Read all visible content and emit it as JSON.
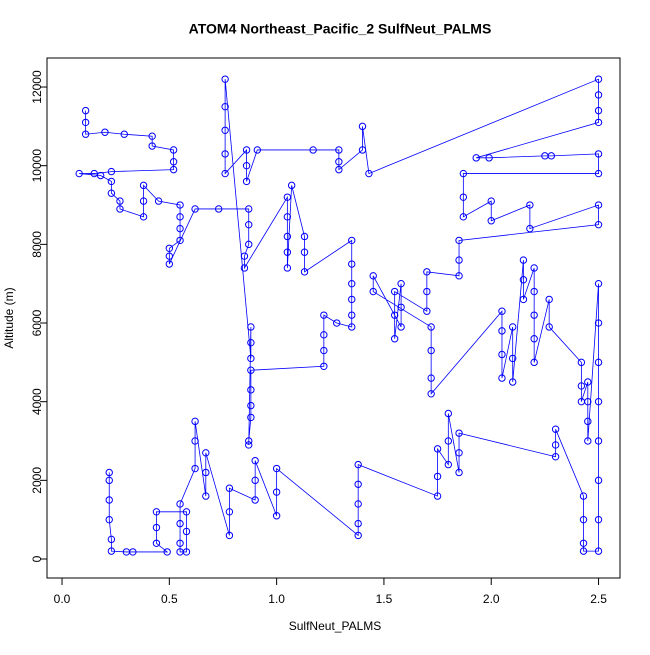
{
  "chart_data": {
    "type": "scatter-line",
    "title": "ATOM4 Northeast_Pacific_2 SulfNeut_PALMS",
    "x_label": "SulfNeut_PALMS",
    "y_label": "Altitude (m)",
    "color": "#0000ff",
    "xlim": [
      -0.07,
      2.6
    ],
    "ylim": [
      -483,
      12738
    ],
    "xticks": [
      {
        "value": 0,
        "label": "0.0"
      },
      0.5,
      {
        "value": 1,
        "label": "1.0"
      },
      1.5,
      {
        "value": 2,
        "label": "2.0"
      },
      2.5
    ],
    "yticks": [
      0,
      2000,
      4000,
      6000,
      8000,
      10000,
      12000
    ],
    "x": [
      0.11,
      0.11,
      0.11,
      0.2,
      0.29,
      0.42,
      0.42,
      0.52,
      0.52,
      0.52,
      0.23,
      0.15,
      0.08,
      0.18,
      0.23,
      0.23,
      0.27,
      0.27,
      0.38,
      0.38,
      0.38,
      0.45,
      0.55,
      0.55,
      0.55,
      0.55,
      0.5,
      0.5,
      0.5,
      0.62,
      0.73,
      0.87,
      0.87,
      0.87,
      0.85,
      0.85,
      1.05,
      1.05,
      1.05,
      1.05,
      1.05,
      1.07,
      1.13,
      1.13,
      1.13,
      1.35,
      1.35,
      1.35,
      1.35,
      1.35,
      1.35,
      1.28,
      1.22,
      1.22,
      1.22,
      1.22,
      0.88,
      0.88,
      0.88,
      0.88,
      0.87,
      0.87,
      0.88,
      0.88,
      0.88,
      0.76,
      0.76,
      0.76,
      0.76,
      0.76,
      0.86,
      0.86,
      0.86,
      0.91,
      1.17,
      1.29,
      1.29,
      1.29,
      1.4,
      1.4,
      1.43,
      2.5,
      2.5,
      2.5,
      2.5,
      1.93,
      1.99,
      2.25,
      2.28,
      2.5,
      2.5,
      1.87,
      1.87,
      1.87,
      2.0,
      2.0,
      2.18,
      2.18,
      2.5,
      2.5,
      1.85,
      1.85,
      1.85,
      1.7,
      1.7,
      1.7,
      1.55,
      1.55,
      1.55,
      1.58,
      1.58,
      1.58,
      1.45,
      1.45,
      1.72,
      1.72,
      1.72,
      1.72,
      2.05,
      2.05,
      2.05,
      2.05,
      2.1,
      2.1,
      2.1,
      2.15,
      2.15,
      2.15,
      2.2,
      2.2,
      2.2,
      2.2,
      2.2,
      2.27,
      2.27,
      2.42,
      2.42,
      2.42,
      2.45,
      2.45,
      2.45,
      2.45,
      2.5,
      2.5,
      2.5,
      2.5,
      2.5,
      2.5,
      2.5,
      2.5,
      2.43,
      2.43,
      2.43,
      2.43,
      2.3,
      2.3,
      2.3,
      1.85,
      1.85,
      1.85,
      1.8,
      1.8,
      1.8,
      1.75,
      1.75,
      1.75,
      1.38,
      1.38,
      1.38,
      1.38,
      1.38,
      1.0,
      1.0,
      1.0,
      0.9,
      0.9,
      0.9,
      0.78,
      0.78,
      0.78,
      0.67,
      0.67,
      0.67,
      0.62,
      0.62,
      0.62,
      0.55,
      0.55,
      0.55,
      0.55,
      0.58,
      0.58,
      0.58,
      0.44,
      0.44,
      0.44,
      0.49,
      0.33,
      0.3,
      0.23,
      0.23,
      0.22,
      0.22,
      0.22,
      0.22
    ],
    "values": [
      11400,
      11100,
      10800,
      10850,
      10800,
      10750,
      10500,
      10400,
      10100,
      9900,
      9850,
      9800,
      9800,
      9750,
      9600,
      9300,
      9100,
      8900,
      8700,
      9100,
      9500,
      9100,
      9000,
      8700,
      8400,
      8100,
      7900,
      7700,
      7500,
      8900,
      8900,
      8900,
      8500,
      8000,
      7700,
      7400,
      9200,
      8700,
      8200,
      7800,
      7400,
      9500,
      8200,
      7800,
      7300,
      8100,
      7500,
      7000,
      6600,
      6200,
      5900,
      6000,
      6200,
      5700,
      5300,
      4900,
      4800,
      4300,
      3900,
      3600,
      3000,
      2900,
      5900,
      5500,
      5100,
      12200,
      11500,
      10900,
      10300,
      9800,
      10400,
      10000,
      9600,
      10400,
      10400,
      10400,
      10100,
      9900,
      10400,
      11000,
      9800,
      12200,
      11800,
      11400,
      11100,
      10200,
      10200,
      10250,
      10250,
      10300,
      9800,
      9800,
      9200,
      8700,
      9100,
      8600,
      9000,
      8400,
      9000,
      8500,
      8100,
      7600,
      7200,
      7300,
      6800,
      6300,
      6800,
      6200,
      5600,
      7000,
      6400,
      5900,
      7200,
      6800,
      5900,
      5300,
      4600,
      4200,
      6300,
      5800,
      5200,
      4600,
      5900,
      5100,
      4500,
      7600,
      7100,
      6600,
      7400,
      6800,
      6200,
      5600,
      5000,
      6600,
      5900,
      5000,
      4400,
      4000,
      4500,
      4000,
      3500,
      3000,
      7000,
      6000,
      5000,
      4000,
      3000,
      2000,
      1000,
      200,
      200,
      400,
      1000,
      1600,
      3300,
      2900,
      2600,
      3200,
      2700,
      2200,
      3700,
      3000,
      2400,
      2800,
      2100,
      1600,
      2400,
      1900,
      1400,
      900,
      600,
      2300,
      1700,
      1100,
      2500,
      2000,
      1500,
      1800,
      1200,
      600,
      2700,
      2200,
      1600,
      3500,
      3000,
      2300,
      1400,
      900,
      400,
      180,
      180,
      700,
      1200,
      1200,
      800,
      400,
      180,
      180,
      180,
      200,
      500,
      1000,
      1500,
      2000,
      2200
    ]
  }
}
